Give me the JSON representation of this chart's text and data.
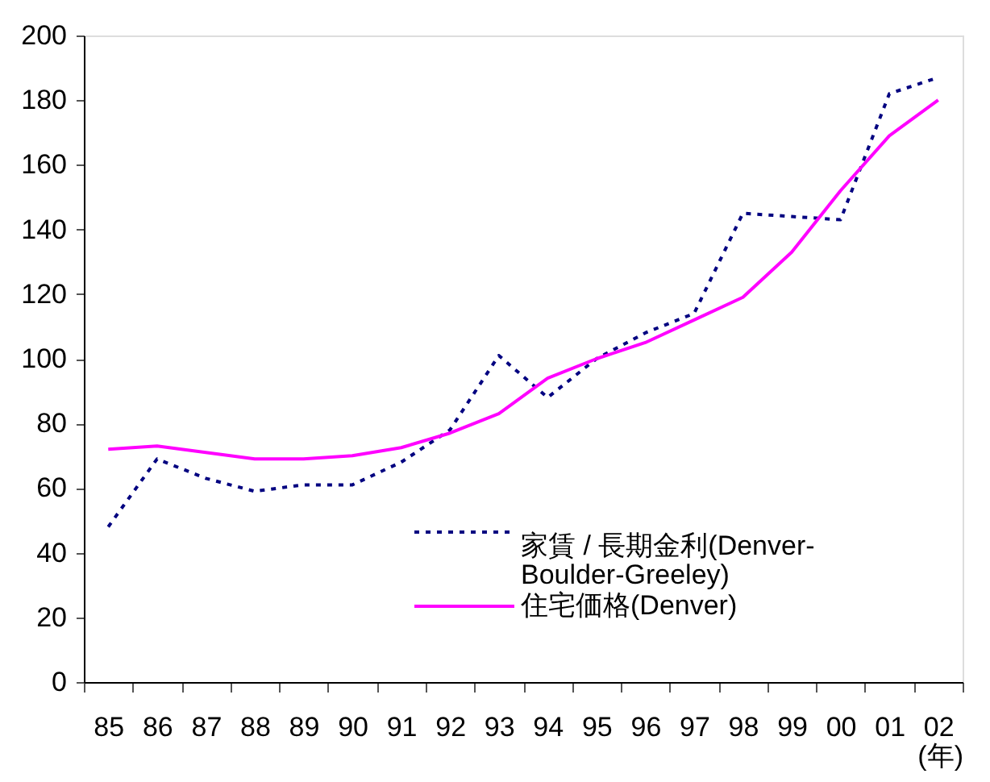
{
  "chart_data": {
    "type": "line",
    "categories": [
      "85",
      "86",
      "87",
      "88",
      "89",
      "90",
      "91",
      "92",
      "93",
      "94",
      "95",
      "96",
      "97",
      "98",
      "99",
      "00",
      "01",
      "02"
    ],
    "xlabel": "(年)",
    "series": [
      {
        "name": "家賃 / 長期金利(Denver-Boulder-Greeley)",
        "color": "#000080",
        "line_style": "dotted",
        "values": [
          48,
          69,
          63,
          59,
          61,
          61,
          68,
          78,
          101,
          88,
          100,
          108,
          114,
          145,
          144,
          143,
          182,
          187
        ]
      },
      {
        "name": "住宅価格(Denver)",
        "color": "#ff00ff",
        "line_style": "solid",
        "values": [
          72,
          73,
          71,
          69,
          69,
          70,
          72.5,
          77,
          83,
          94,
          100,
          105,
          112,
          119,
          133,
          152,
          169,
          180
        ]
      }
    ],
    "ylim": [
      0,
      200
    ],
    "yticks": [
      0,
      20,
      40,
      60,
      80,
      100,
      120,
      140,
      160,
      180,
      200
    ],
    "grid": false,
    "legend": "bottom right",
    "marker": "none"
  }
}
